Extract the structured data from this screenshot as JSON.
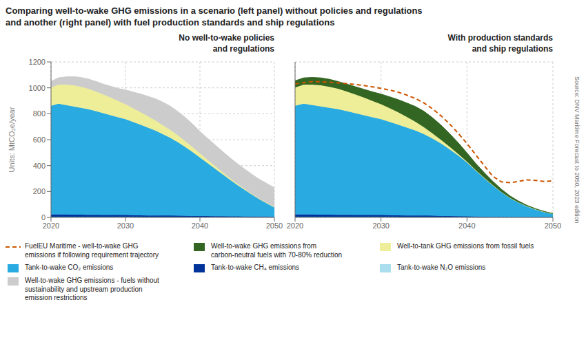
{
  "title": "Comparing well-to-wake GHG emissions in a scenario (left panel) without policies and regulations\nand another (right panel) with fuel production standards and ship regulations",
  "legend": "bottom",
  "chart_data": [
    {
      "type": "area",
      "stacked": true,
      "title": "No well-to-wake policies\nand regulations",
      "ylabel": "Units: MtCO₂e/year",
      "x": [
        2020,
        2021,
        2022,
        2023,
        2024,
        2025,
        2026,
        2027,
        2028,
        2029,
        2030,
        2031,
        2032,
        2033,
        2034,
        2035,
        2036,
        2037,
        2038,
        2039,
        2040,
        2041,
        2042,
        2043,
        2044,
        2045,
        2046,
        2047,
        2048,
        2049,
        2050
      ],
      "xlim": [
        2020,
        2050
      ],
      "xticks": [
        2020,
        2030,
        2040,
        2050
      ],
      "ylim": [
        0,
        1200
      ],
      "yticks": [
        0,
        200,
        400,
        600,
        800,
        1000,
        1200
      ],
      "grid": true,
      "series": [
        {
          "name": "Tank-to-wake N₂O emissions",
          "color": "#aaddee",
          "values": [
            4,
            4,
            4,
            4,
            4,
            4,
            4,
            4,
            4,
            4,
            4,
            4,
            3,
            3,
            3,
            3,
            3,
            3,
            2,
            2,
            2,
            2,
            2,
            2,
            2,
            2,
            2,
            2,
            2,
            2,
            2
          ]
        },
        {
          "name": "Tank-to-wake CH₄ emissions",
          "color": "#003399",
          "values": [
            18,
            18,
            18,
            17,
            17,
            16,
            16,
            15,
            15,
            14,
            14,
            13,
            13,
            12,
            12,
            11,
            11,
            10,
            10,
            9,
            8,
            8,
            7,
            7,
            6,
            6,
            5,
            5,
            4,
            4,
            3
          ]
        },
        {
          "name": "Tank-to-wake CO₂ emissions",
          "color": "#29ABE2",
          "values": [
            840,
            855,
            845,
            835,
            825,
            815,
            800,
            785,
            770,
            755,
            740,
            720,
            700,
            678,
            655,
            628,
            600,
            568,
            532,
            493,
            452,
            410,
            368,
            326,
            284,
            243,
            205,
            168,
            133,
            102,
            72
          ]
        },
        {
          "name": "Well-to-tank GHG emissions from fossil fuels",
          "color": "#eeee99",
          "values": [
            140,
            148,
            158,
            163,
            162,
            158,
            152,
            145,
            136,
            126,
            116,
            106,
            97,
            87,
            79,
            70,
            62,
            53,
            46,
            39,
            32,
            26,
            21,
            16,
            12,
            9,
            7,
            5,
            4,
            3,
            2
          ]
        },
        {
          "name": "Well-to-wake GHG emissions - fuels without\nsustainability and upstream production\nemission restrictions",
          "color": "#cccccc",
          "values": [
            48,
            52,
            60,
            68,
            72,
            75,
            78,
            80,
            88,
            96,
            110,
            125,
            140,
            155,
            167,
            178,
            183,
            185,
            183,
            178,
            170,
            165,
            163,
            160,
            158,
            156,
            154,
            152,
            150,
            150,
            149
          ]
        }
      ]
    },
    {
      "type": "area",
      "stacked": true,
      "title": "With production standards\nand ship regulations",
      "tick_labels": "x",
      "annotations": [
        "Source: DNV Maritime Forecast to 2050, 2023 edition"
      ],
      "x": [
        2020,
        2021,
        2022,
        2023,
        2024,
        2025,
        2026,
        2027,
        2028,
        2029,
        2030,
        2031,
        2032,
        2033,
        2034,
        2035,
        2036,
        2037,
        2038,
        2039,
        2040,
        2041,
        2042,
        2043,
        2044,
        2045,
        2046,
        2047,
        2048,
        2049,
        2050
      ],
      "xlim": [
        2020,
        2050
      ],
      "xticks": [
        2020,
        2030,
        2040,
        2050
      ],
      "ylim": [
        0,
        1200
      ],
      "yticks": [
        0,
        200,
        400,
        600,
        800,
        1000,
        1200
      ],
      "grid": true,
      "series": [
        {
          "name": "Tank-to-wake N₂O emissions",
          "color": "#aaddee",
          "values": [
            4,
            4,
            4,
            4,
            4,
            4,
            4,
            4,
            4,
            4,
            4,
            4,
            3,
            3,
            3,
            3,
            3,
            2,
            2,
            2,
            2,
            1,
            1,
            1,
            1,
            1,
            1,
            1,
            1,
            1,
            1
          ]
        },
        {
          "name": "Tank-to-wake CH₄ emissions",
          "color": "#003399",
          "values": [
            18,
            18,
            18,
            17,
            17,
            16,
            16,
            15,
            15,
            14,
            14,
            13,
            13,
            12,
            12,
            11,
            10,
            9,
            8,
            7,
            6,
            5,
            4,
            3,
            3,
            2,
            2,
            2,
            2,
            1,
            1
          ]
        },
        {
          "name": "Tank-to-wake CO₂ emissions",
          "color": "#29ABE2",
          "values": [
            840,
            855,
            845,
            835,
            825,
            815,
            800,
            785,
            770,
            755,
            740,
            720,
            700,
            678,
            655,
            628,
            595,
            558,
            515,
            468,
            415,
            356,
            298,
            243,
            192,
            147,
            112,
            82,
            58,
            39,
            24
          ]
        },
        {
          "name": "Well-to-tank GHG emissions from fossil fuels",
          "color": "#eeee99",
          "values": [
            140,
            148,
            158,
            163,
            162,
            158,
            152,
            145,
            136,
            126,
            116,
            106,
            95,
            82,
            68,
            53,
            40,
            28,
            19,
            12,
            7,
            4,
            3,
            2,
            1,
            1,
            1,
            1,
            1,
            1,
            1
          ]
        },
        {
          "name": "Well-to-wake GHG emissions from\ncarbon-neutral fuels with 70-80% reduction",
          "color": "#336622",
          "values": [
            52,
            52,
            55,
            58,
            58,
            56,
            57,
            60,
            64,
            70,
            78,
            88,
            98,
            108,
            118,
            124,
            121,
            114,
            101,
            86,
            68,
            52,
            40,
            30,
            21,
            15,
            10,
            7,
            5,
            4,
            3
          ]
        },
        {
          "name": "FuelEU Maritime - well-to-wake GHG\nemissions if following requirement trajectory",
          "type": "line",
          "line_style": "dashed",
          "stacked": false,
          "color": "#cc5500",
          "values": [
            1030,
            1040,
            1048,
            1047,
            1043,
            1038,
            1033,
            1027,
            1018,
            1008,
            996,
            983,
            966,
            944,
            918,
            883,
            838,
            783,
            720,
            648,
            570,
            485,
            400,
            318,
            275,
            268,
            278,
            290,
            285,
            278,
            282
          ]
        }
      ]
    }
  ]
}
